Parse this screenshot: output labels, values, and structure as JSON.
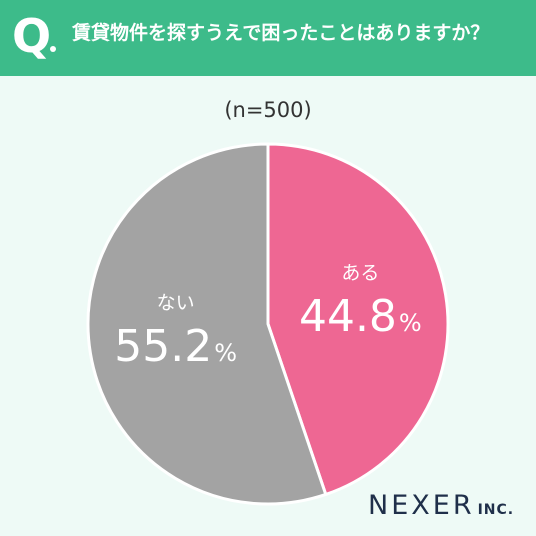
{
  "header": {
    "q_letter": "Q",
    "question": "賃貸物件を探すうえで困ったことはありますか？",
    "bg_color": "#3dbb8a"
  },
  "sample_label": "(n=500)",
  "chart_data": {
    "type": "pie",
    "title": "賃貸物件を探すうえで困ったことはありますか？",
    "n": 500,
    "slices": [
      {
        "label": "ある",
        "value": 44.8,
        "display": "44.8",
        "unit": "%",
        "color": "#ee6793"
      },
      {
        "label": "ない",
        "value": 55.2,
        "display": "55.2",
        "unit": "%",
        "color": "#a3a3a3"
      }
    ],
    "start": "12 o'clock",
    "direction": "clockwise"
  },
  "logo": {
    "main": "NEXER",
    "sub": "INC."
  }
}
